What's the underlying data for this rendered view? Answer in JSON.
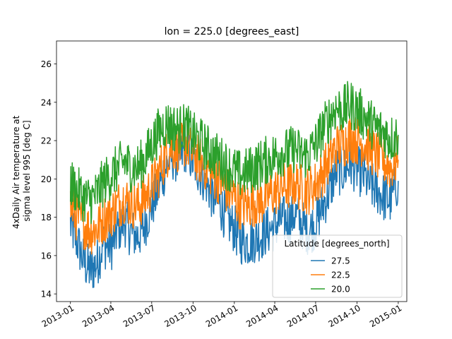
{
  "chart_data": {
    "type": "line",
    "title": "lon = 225.0 [degrees_east]",
    "xlabel": "",
    "ylabel_lines": [
      "4xDaily Air temperature at",
      "sigma level 995 [deg C]"
    ],
    "x_range": [
      "2012-12-01",
      "2015-01-20"
    ],
    "ylim": [
      13.6,
      27.2
    ],
    "x_ticks": [
      "2013-01",
      "2013-04",
      "2013-07",
      "2013-10",
      "2014-01",
      "2014-04",
      "2014-07",
      "2014-10",
      "2015-01"
    ],
    "y_ticks": [
      14,
      16,
      18,
      20,
      22,
      24,
      26
    ],
    "grid": false,
    "legend": {
      "title": "Latitude [degrees_north]",
      "placement": "lower-right"
    },
    "series": [
      {
        "name": "27.5",
        "color": "#1f77b4",
        "x": [
          "2013-01-01",
          "2013-01-15",
          "2013-02-01",
          "2013-02-15",
          "2013-03-01",
          "2013-03-15",
          "2013-04-01",
          "2013-04-15",
          "2013-05-01",
          "2013-05-15",
          "2013-06-01",
          "2013-06-15",
          "2013-07-01",
          "2013-07-15",
          "2013-08-01",
          "2013-08-15",
          "2013-09-01",
          "2013-09-15",
          "2013-10-01",
          "2013-10-15",
          "2013-11-01",
          "2013-11-15",
          "2013-12-01",
          "2013-12-15",
          "2014-01-01",
          "2014-01-15",
          "2014-02-01",
          "2014-02-15",
          "2014-03-01",
          "2014-03-15",
          "2014-04-01",
          "2014-04-15",
          "2014-05-01",
          "2014-05-15",
          "2014-06-01",
          "2014-06-15",
          "2014-07-01",
          "2014-07-15",
          "2014-08-01",
          "2014-08-15",
          "2014-09-01",
          "2014-09-15",
          "2014-10-01",
          "2014-10-15",
          "2014-11-01",
          "2014-11-15",
          "2014-12-01",
          "2014-12-15",
          "2015-01-01"
        ],
        "y": [
          17.6,
          16.8,
          15.6,
          15.2,
          15.6,
          16.6,
          16.4,
          17.3,
          17.8,
          17.2,
          17.0,
          17.6,
          18.6,
          19.4,
          20.6,
          21.2,
          21.0,
          21.6,
          20.9,
          20.4,
          19.8,
          19.0,
          18.6,
          17.9,
          17.4,
          16.8,
          16.7,
          16.9,
          17.0,
          17.3,
          17.5,
          17.9,
          17.8,
          18.2,
          17.6,
          17.3,
          17.6,
          18.5,
          19.4,
          20.4,
          20.4,
          20.8,
          20.5,
          20.2,
          19.6,
          19.4,
          19.0,
          18.9,
          19.9
        ]
      },
      {
        "name": "22.5",
        "color": "#ff7f0e",
        "x": [
          "2013-01-01",
          "2013-01-15",
          "2013-02-01",
          "2013-02-15",
          "2013-03-01",
          "2013-03-15",
          "2013-04-01",
          "2013-04-15",
          "2013-05-01",
          "2013-05-15",
          "2013-06-01",
          "2013-06-15",
          "2013-07-01",
          "2013-07-15",
          "2013-08-01",
          "2013-08-15",
          "2013-09-01",
          "2013-09-15",
          "2013-10-01",
          "2013-10-15",
          "2013-11-01",
          "2013-11-15",
          "2013-12-01",
          "2013-12-15",
          "2014-01-01",
          "2014-01-15",
          "2014-02-01",
          "2014-02-15",
          "2014-03-01",
          "2014-03-15",
          "2014-04-01",
          "2014-04-15",
          "2014-05-01",
          "2014-05-15",
          "2014-06-01",
          "2014-06-15",
          "2014-07-01",
          "2014-07-15",
          "2014-08-01",
          "2014-08-15",
          "2014-09-01",
          "2014-09-15",
          "2014-10-01",
          "2014-10-15",
          "2014-11-01",
          "2014-11-15",
          "2014-12-01",
          "2014-12-15",
          "2015-01-01"
        ],
        "y": [
          18.6,
          18.0,
          17.6,
          17.3,
          17.4,
          17.9,
          18.2,
          18.6,
          19.0,
          18.7,
          18.6,
          19.0,
          19.6,
          20.2,
          21.2,
          21.7,
          21.6,
          21.9,
          21.3,
          21.0,
          20.6,
          20.2,
          19.9,
          19.4,
          19.0,
          18.6,
          18.6,
          18.8,
          18.8,
          19.1,
          19.3,
          19.6,
          19.6,
          19.8,
          19.5,
          19.4,
          19.7,
          20.3,
          21.0,
          21.6,
          21.8,
          22.2,
          22.0,
          21.9,
          21.5,
          21.2,
          20.9,
          20.6,
          21.0
        ]
      },
      {
        "name": "20.0",
        "color": "#2ca02c",
        "x": [
          "2013-01-01",
          "2013-01-15",
          "2013-02-01",
          "2013-02-15",
          "2013-03-01",
          "2013-03-15",
          "2013-04-01",
          "2013-04-15",
          "2013-05-01",
          "2013-05-15",
          "2013-06-01",
          "2013-06-15",
          "2013-07-01",
          "2013-07-15",
          "2013-08-01",
          "2013-08-15",
          "2013-09-01",
          "2013-09-15",
          "2013-10-01",
          "2013-10-15",
          "2013-11-01",
          "2013-11-15",
          "2013-12-01",
          "2013-12-15",
          "2014-01-01",
          "2014-01-15",
          "2014-02-01",
          "2014-02-15",
          "2014-03-01",
          "2014-03-15",
          "2014-04-01",
          "2014-04-15",
          "2014-05-01",
          "2014-05-15",
          "2014-06-01",
          "2014-06-15",
          "2014-07-01",
          "2014-07-15",
          "2014-08-01",
          "2014-08-15",
          "2014-09-01",
          "2014-09-15",
          "2014-10-01",
          "2014-10-15",
          "2014-11-01",
          "2014-11-15",
          "2014-12-01",
          "2014-12-15",
          "2015-01-01"
        ],
        "y": [
          19.8,
          19.4,
          19.0,
          18.9,
          19.2,
          19.8,
          20.2,
          20.5,
          20.9,
          20.6,
          20.6,
          21.0,
          21.8,
          22.4,
          22.9,
          22.7,
          22.6,
          22.7,
          22.2,
          22.0,
          21.6,
          21.3,
          21.0,
          20.7,
          20.4,
          20.2,
          20.4,
          20.6,
          20.8,
          21.0,
          21.2,
          21.4,
          21.4,
          21.6,
          21.2,
          21.3,
          21.8,
          22.5,
          23.2,
          23.7,
          23.6,
          23.9,
          23.6,
          23.3,
          22.9,
          22.6,
          22.4,
          22.1,
          22.3
        ]
      }
    ]
  }
}
